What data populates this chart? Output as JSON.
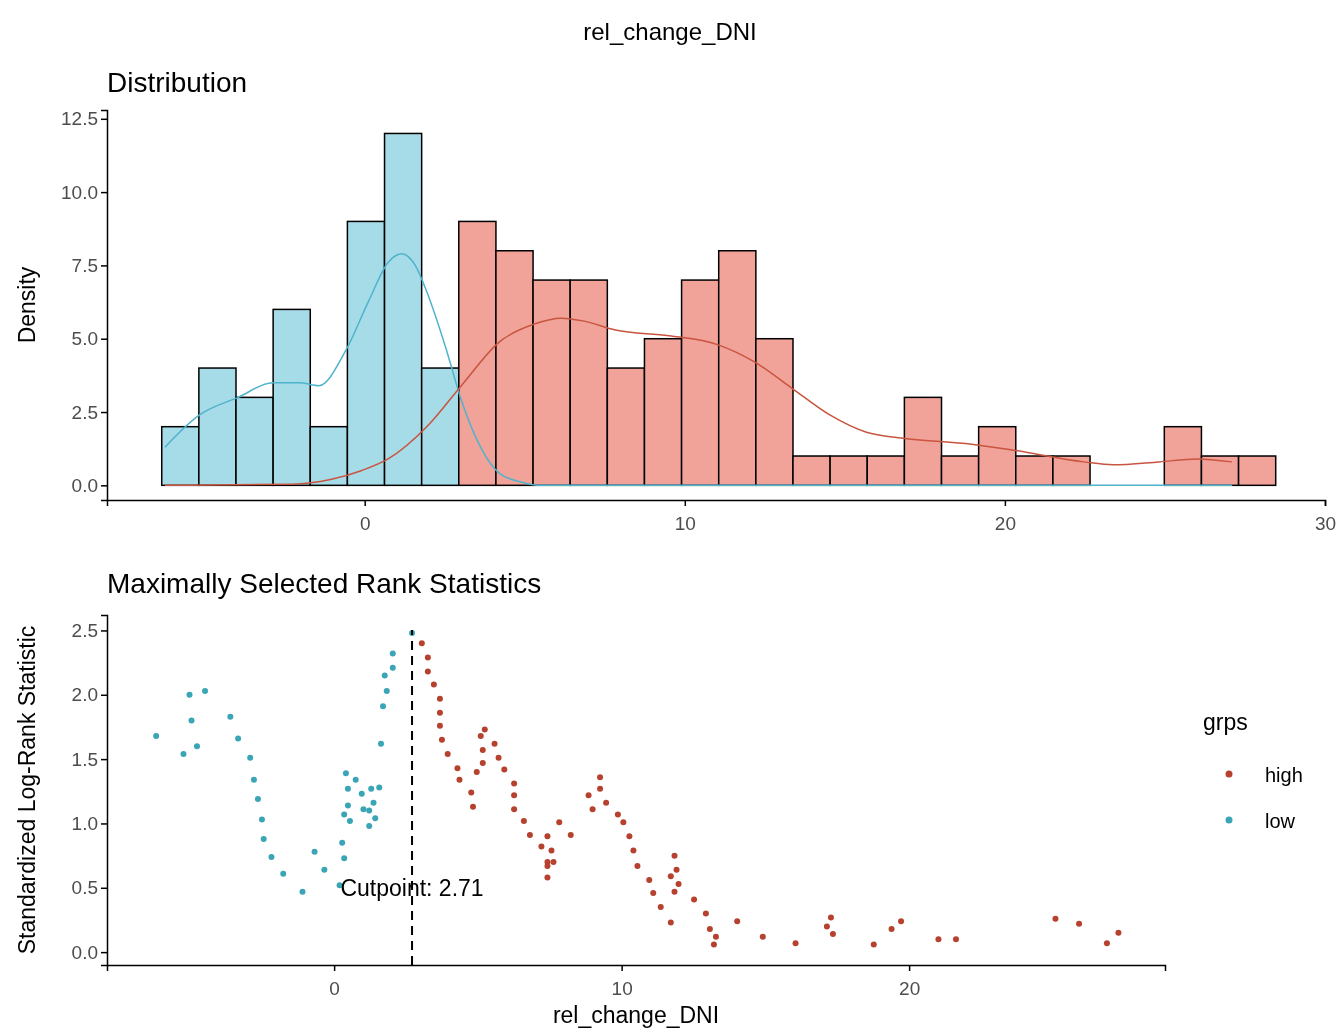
{
  "chart_data": [
    {
      "type": "histogram",
      "title": "rel_change_DNI",
      "subtitle": "Distribution",
      "ylabel": "Density",
      "xlim": [
        -8.05,
        30
      ],
      "xticks": [
        0,
        10,
        20,
        30
      ],
      "ylim": [
        -0.5,
        12.8
      ],
      "yticks": [
        {
          "value": 0,
          "label": "0.0"
        },
        {
          "value": 2.5,
          "label": "2.5"
        },
        {
          "value": 5,
          "label": "5.0"
        },
        {
          "value": 7.5,
          "label": "7.5"
        },
        {
          "value": 10,
          "label": "10.0"
        },
        {
          "value": 12.5,
          "label": "12.5"
        }
      ],
      "bins": [
        -6.34,
        -5.18,
        -4.02,
        -2.86,
        -1.7,
        -0.54,
        0.62,
        1.78,
        2.94,
        4.1,
        5.26,
        6.42,
        7.58,
        8.74,
        9.9,
        11.06,
        12.22,
        13.38,
        14.54,
        15.7,
        16.86,
        18.02,
        19.18,
        20.34,
        21.5,
        22.66,
        23.82,
        24.98,
        26.14,
        27.3,
        28.46
      ],
      "series": [
        {
          "color": "#a6dbe8",
          "values": [
            2,
            4,
            3,
            6,
            2,
            9,
            12,
            4,
            null,
            null,
            null,
            null,
            null,
            null,
            null,
            null,
            null,
            null,
            null,
            null,
            null,
            null,
            null,
            null,
            null,
            null,
            null,
            null,
            null,
            null
          ]
        },
        {
          "color": "#f1a299",
          "values": [
            null,
            null,
            null,
            null,
            null,
            null,
            null,
            null,
            9,
            8,
            7,
            7,
            4,
            5,
            7,
            8,
            5,
            1,
            1,
            1,
            3,
            1,
            2,
            1,
            1,
            0,
            0,
            2,
            1,
            1
          ]
        },
        {
          "type": "line",
          "color": "#4fb3cc",
          "x": [
            -6.24,
            -5.16,
            -3.95,
            -2.88,
            -2.03,
            -1.43,
            -0.59,
            0.13,
            0.73,
            1.16,
            1.58,
            1.94,
            2.53,
            3.02,
            3.62,
            4.22,
            4.94,
            5.48,
            27.1
          ],
          "values": [
            1.3,
            2.4,
            3.0,
            3.5,
            3.5,
            3.4,
            4.6,
            6.3,
            7.6,
            7.9,
            7.5,
            6.6,
            4.7,
            2.9,
            1.3,
            0.4,
            0.1,
            0,
            0
          ]
        },
        {
          "type": "line",
          "color": "#c8553f",
          "x": [
            -6.24,
            -2.27,
            -1.07,
            -0.11,
            0.73,
            1.94,
            3.02,
            4.22,
            5.3,
            6.14,
            6.86,
            7.83,
            9.51,
            11.02,
            12.19,
            13.36,
            14.53,
            15.7,
            16.88,
            18.96,
            20.26,
            22.47,
            23.38,
            24.81,
            25.99,
            27.09
          ],
          "values": [
            0,
            0.04,
            0.2,
            0.5,
            0.9,
            2.0,
            3.4,
            4.9,
            5.5,
            5.7,
            5.6,
            5.3,
            5.1,
            4.8,
            4.2,
            3.3,
            2.4,
            1.8,
            1.6,
            1.4,
            1.2,
            0.8,
            0.7,
            0.8,
            0.9,
            0.8
          ]
        }
      ]
    },
    {
      "type": "scatter",
      "title": "Maximally Selected Rank Statistics",
      "xlabel": "rel_change_DNI",
      "ylabel": "Standardized Log-Rank Statistic",
      "legend_title": "grps",
      "legend": "right",
      "marker": "circle",
      "xlim": [
        -7.9,
        28.9
      ],
      "xticks": [
        0,
        10,
        20
      ],
      "ylim": [
        -0.1,
        2.62
      ],
      "yticks": [
        {
          "value": 0,
          "label": "0.0"
        },
        {
          "value": 0.5,
          "label": "0.5"
        },
        {
          "value": 1,
          "label": "1.0"
        },
        {
          "value": 1.5,
          "label": "1.5"
        },
        {
          "value": 2,
          "label": "2.0"
        },
        {
          "value": 2.5,
          "label": "2.5"
        }
      ],
      "ref_lines": [
        {
          "axis": "x",
          "value": 2.71,
          "line_style": "dashed",
          "color": "#000000"
        }
      ],
      "annotations": [
        {
          "text": "Cutpoint: 2.71",
          "x": 2.71,
          "y": 0.5
        }
      ],
      "series": [
        {
          "name": "high",
          "color": "#b5412e",
          "x": [
            3.05,
            3.26,
            3.26,
            3.47,
            3.68,
            3.68,
            3.68,
            3.75,
            3.95,
            4.29,
            4.36,
            4.77,
            4.83,
            4.96,
            5.1,
            5.17,
            5.17,
            5.24,
            5.58,
            5.72,
            5.92,
            6.26,
            6.26,
            6.26,
            6.6,
            6.81,
            7.21,
            7.42,
            7.56,
            7.42,
            7.63,
            7.42,
            7.42,
            7.83,
            8.23,
            8.85,
            8.99,
            9.25,
            9.25,
            9.46,
            9.87,
            10.06,
            10.27,
            10.41,
            10.55,
            10.96,
            11.1,
            11.36,
            11.71,
            11.71,
            11.84,
            11.91,
            11.98,
            11.84,
            12.52,
            12.93,
            13.07,
            13.28,
            13.21,
            14.02,
            14.91,
            16.05,
            17.14,
            17.28,
            17.35,
            18.77,
            19.39,
            19.72,
            21.02,
            21.63,
            25.09,
            25.91,
            26.88,
            27.28
          ],
          "values": [
            2.4,
            2.29,
            2.18,
            2.08,
            1.97,
            1.86,
            1.76,
            1.65,
            1.54,
            1.43,
            1.34,
            1.24,
            1.13,
            1.4,
            1.68,
            1.57,
            1.47,
            1.73,
            1.62,
            1.51,
            1.42,
            1.31,
            1.22,
            1.11,
            1.02,
            0.91,
            0.82,
            0.9,
            0.79,
            0.7,
            0.7,
            0.67,
            0.58,
            1.01,
            0.91,
            1.22,
            1.11,
            1.36,
            1.27,
            1.16,
            1.07,
            1.01,
            0.9,
            0.79,
            0.67,
            0.56,
            0.46,
            0.35,
            0.59,
            0.23,
            0.75,
            0.64,
            0.53,
            0.47,
            0.41,
            0.3,
            0.18,
            0.12,
            0.06,
            0.24,
            0.12,
            0.07,
            0.2,
            0.27,
            0.14,
            0.06,
            0.18,
            0.24,
            0.1,
            0.1,
            0.26,
            0.22,
            0.07,
            0.15
          ]
        },
        {
          "name": "low",
          "color": "#3aa5b5",
          "x": [
            -6.19,
            -5.24,
            -5.03,
            -4.96,
            -4.77,
            -4.49,
            -3.61,
            -3.34,
            -2.92,
            -2.79,
            -2.65,
            -2.51,
            -2.45,
            -2.18,
            -1.77,
            -1.1,
            -0.68,
            -0.34,
            0.19,
            0.28,
            0.35,
            0.35,
            0.41,
            0.48,
            0.48,
            0.55,
            0.75,
            0.96,
            1.02,
            1.22,
            1.22,
            1.29,
            1.37,
            1.43,
            1.57,
            1.63,
            1.7,
            1.83,
            1.76,
            2.04,
            2.04,
            2.71
          ],
          "values": [
            1.68,
            1.54,
            2.0,
            1.8,
            1.6,
            2.03,
            1.83,
            1.66,
            1.51,
            1.34,
            1.19,
            1.03,
            0.88,
            0.74,
            0.61,
            0.47,
            0.78,
            0.64,
            0.52,
            0.85,
            0.73,
            1.07,
            1.39,
            1.27,
            1.14,
            1.02,
            1.34,
            1.23,
            1.11,
            1.1,
            0.98,
            1.27,
            1.16,
            1.04,
            1.28,
            1.62,
            1.91,
            2.03,
            2.15,
            2.21,
            2.32,
            2.48
          ]
        }
      ]
    }
  ]
}
